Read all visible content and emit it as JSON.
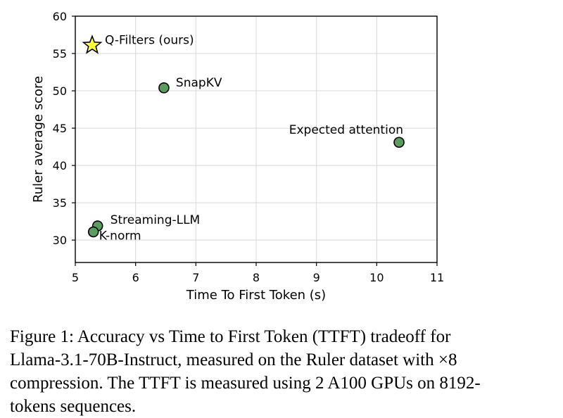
{
  "chart_data": {
    "type": "scatter",
    "xlabel": "Time To First Token (s)",
    "ylabel": "Ruler average score",
    "xlim": [
      5,
      11
    ],
    "ylim": [
      27,
      60
    ],
    "xticks": [
      5,
      6,
      7,
      8,
      9,
      10,
      11
    ],
    "yticks": [
      30,
      35,
      40,
      45,
      50,
      55,
      60
    ],
    "grid": true,
    "colors": {
      "point": "#5a9e5f",
      "star": "#ffff3a",
      "edge": "#000000",
      "grid": "#d8d8d8"
    },
    "points": [
      {
        "label": "Q-Filters (ours)",
        "x": 5.28,
        "y": 56.1,
        "marker": "star"
      },
      {
        "label": "SnapKV",
        "x": 6.47,
        "y": 50.4,
        "marker": "circle"
      },
      {
        "label": "Expected attention",
        "x": 10.37,
        "y": 43.1,
        "marker": "circle"
      },
      {
        "label": "Streaming-LLM",
        "x": 5.37,
        "y": 31.9,
        "marker": "circle"
      },
      {
        "label": "K-norm",
        "x": 5.3,
        "y": 31.1,
        "marker": "circle"
      }
    ]
  },
  "caption": "Figure 1: Accuracy vs Time to First Token (TTFT) tradeoff for Llama-3.1-70B-Instruct, measured on the Ruler dataset with ×8 compression. The TTFT is measured using 2 A100 GPUs on 8192-tokens sequences."
}
